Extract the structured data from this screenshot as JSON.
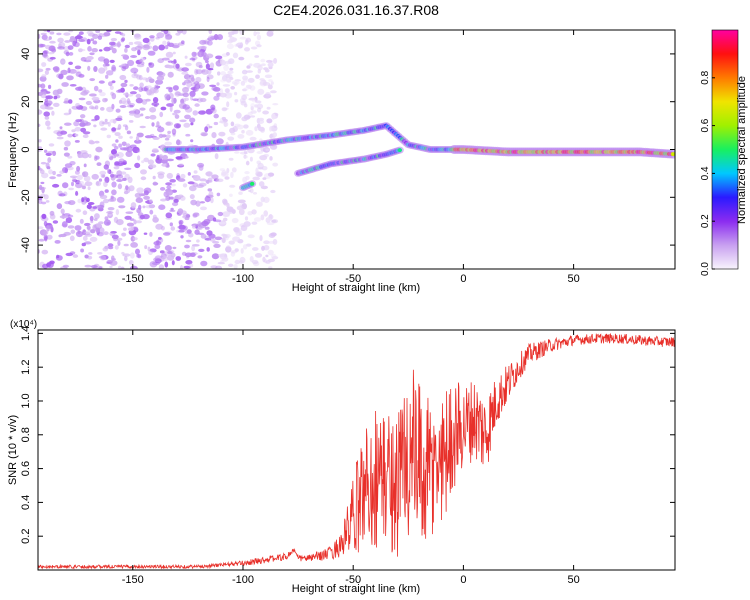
{
  "title": "C2E4.2026.031.16.37.R08",
  "colors": {
    "line": "#e8302a",
    "axis": "#000000",
    "colormap": [
      "#f8f4fc",
      "#c8a0f0",
      "#8b2cf0",
      "#2a1aff",
      "#00c8ff",
      "#18f060",
      "#a0f000",
      "#f0e400",
      "#ff7a00",
      "#ff1010",
      "#ff00a0"
    ]
  },
  "chart_data": [
    {
      "type": "heatmap",
      "title": "",
      "xlabel": "Height of straight line (km)",
      "ylabel": "Frequency (Hz)",
      "xlim": [
        -193,
        96
      ],
      "ylim": [
        -50,
        50
      ],
      "xticks": [
        -150,
        -100,
        -50,
        0,
        50
      ],
      "xtick_labels": [
        "-150",
        "-100",
        "-50",
        "0",
        "50"
      ],
      "yticks": [
        -40,
        -20,
        0,
        20,
        40
      ],
      "ytick_labels": [
        "-40",
        "-20",
        "0",
        "20",
        "40"
      ],
      "colorbar": {
        "label": "Normalized spectral amplitude",
        "range": [
          0,
          1
        ],
        "ticks": [
          0.0,
          0.2,
          0.4,
          0.6,
          0.8
        ],
        "tick_labels": [
          "0.0",
          "0.2",
          "0.4",
          "0.6",
          "0.8"
        ]
      },
      "features": [
        {
          "name": "noise region",
          "x_range": [
            -193,
            -110
          ],
          "freq_range": [
            -50,
            50
          ],
          "amplitude": 0.08
        },
        {
          "name": "main echo trace",
          "points": [
            [
              -135,
              0
            ],
            [
              -120,
              0
            ],
            [
              -100,
              1
            ],
            [
              -80,
              4
            ],
            [
              -60,
              6
            ],
            [
              -45,
              8
            ],
            [
              -35,
              10
            ],
            [
              -25,
              2
            ],
            [
              -15,
              0
            ],
            [
              0,
              0
            ],
            [
              20,
              -1
            ],
            [
              50,
              -1
            ],
            [
              80,
              -1
            ],
            [
              96,
              -2
            ]
          ]
        },
        {
          "name": "secondary trace",
          "points": [
            [
              -75,
              -10
            ],
            [
              -60,
              -6
            ],
            [
              -45,
              -4
            ],
            [
              -35,
              -2
            ],
            [
              -28,
              0
            ]
          ]
        },
        {
          "name": "low blob",
          "points": [
            [
              -100,
              -16
            ],
            [
              -95,
              -14
            ]
          ]
        }
      ]
    },
    {
      "type": "line",
      "title": "",
      "xlabel": "Height of straight line (km)",
      "ylabel": "SNR (10 * v/v)",
      "y_scale_label": "(x10⁴)",
      "xlim": [
        -193,
        96
      ],
      "ylim": [
        0,
        1.42
      ],
      "xticks": [
        -150,
        -100,
        -50,
        0,
        50
      ],
      "xtick_labels": [
        "-150",
        "-100",
        "-50",
        "0",
        "50"
      ],
      "yticks": [
        0.2,
        0.4,
        0.6,
        0.8,
        1.0,
        1.2,
        1.4
      ],
      "ytick_labels": [
        "0.2",
        "0.4",
        "0.6",
        "0.8",
        "1.0",
        "1.2",
        "1.4"
      ],
      "series": [
        {
          "name": "SNR",
          "x": [
            -193,
            -180,
            -160,
            -140,
            -120,
            -110,
            -100,
            -90,
            -80,
            -77,
            -75,
            -70,
            -60,
            -55,
            -50,
            -45,
            -40,
            -35,
            -30,
            -25,
            -20,
            -15,
            -10,
            -5,
            0,
            5,
            10,
            15,
            20,
            25,
            30,
            40,
            50,
            60,
            70,
            80,
            90,
            96
          ],
          "values": [
            0.02,
            0.02,
            0.02,
            0.02,
            0.02,
            0.03,
            0.04,
            0.06,
            0.08,
            0.12,
            0.07,
            0.07,
            0.1,
            0.16,
            0.3,
            0.5,
            0.55,
            0.55,
            0.5,
            0.7,
            0.6,
            0.55,
            0.65,
            0.8,
            0.85,
            0.9,
            0.8,
            1.0,
            1.1,
            1.2,
            1.28,
            1.33,
            1.36,
            1.37,
            1.37,
            1.36,
            1.35,
            1.35
          ],
          "spread": [
            0.01,
            0.01,
            0.01,
            0.01,
            0.01,
            0.01,
            0.015,
            0.02,
            0.02,
            0.02,
            0.02,
            0.02,
            0.04,
            0.08,
            0.25,
            0.35,
            0.45,
            0.4,
            0.45,
            0.6,
            0.5,
            0.45,
            0.4,
            0.35,
            0.25,
            0.25,
            0.25,
            0.15,
            0.12,
            0.08,
            0.06,
            0.04,
            0.03,
            0.03,
            0.03,
            0.03,
            0.03,
            0.03
          ]
        }
      ]
    }
  ]
}
